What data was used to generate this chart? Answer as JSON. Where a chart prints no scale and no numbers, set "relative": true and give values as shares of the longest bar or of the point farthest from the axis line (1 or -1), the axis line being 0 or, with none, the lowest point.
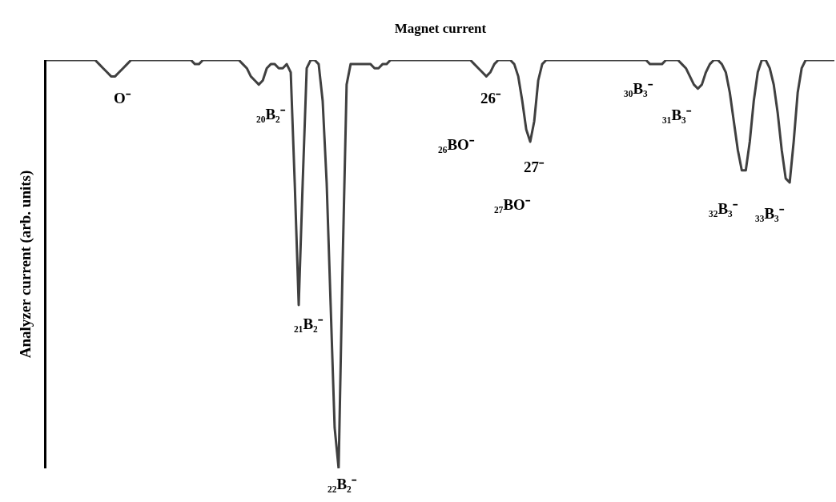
{
  "chart_data": {
    "type": "line",
    "relative": true,
    "xlabel": "Magnet current",
    "ylabel": "Analyzer current (arb. units)",
    "marker": "none",
    "line_style": "solid",
    "categories": [
      null,
      null,
      null,
      null,
      null,
      null,
      null,
      null,
      null,
      null,
      null,
      null,
      null,
      null,
      null,
      null,
      null,
      null,
      null,
      null,
      null,
      null,
      null,
      null,
      null,
      null,
      null,
      null,
      null,
      null,
      null,
      null,
      null,
      null,
      null,
      null,
      null,
      null,
      null,
      null,
      null,
      null,
      null,
      null,
      null,
      null,
      null,
      null,
      null,
      null,
      null,
      null,
      null,
      null,
      null,
      null,
      null,
      null,
      null,
      null,
      null,
      null,
      null,
      null,
      null,
      null,
      null,
      null,
      null,
      null,
      null,
      null,
      null,
      null,
      null,
      null,
      null,
      null,
      null,
      null,
      null,
      null,
      null,
      null,
      null,
      null,
      null,
      null,
      null,
      null,
      null,
      null,
      null,
      null,
      null,
      null,
      null,
      null,
      null,
      null,
      null,
      null,
      null,
      null,
      null,
      null,
      null,
      null,
      null,
      null,
      null,
      null,
      null,
      null,
      null,
      null,
      null,
      null,
      null,
      null,
      null,
      null,
      null,
      null,
      null,
      null,
      null,
      null,
      null,
      null,
      null,
      null,
      null,
      null,
      null,
      null,
      null,
      null,
      null,
      null,
      null,
      null,
      null,
      null,
      null,
      null,
      null,
      null,
      null,
      null,
      null,
      null,
      null,
      null,
      null,
      null,
      null,
      null,
      null,
      null,
      null,
      null,
      null,
      null,
      null,
      null,
      null,
      null,
      null,
      null,
      null,
      null,
      null,
      null,
      null,
      null,
      null,
      null,
      null,
      null,
      null,
      null,
      null,
      null,
      null,
      null,
      null,
      null,
      null,
      null,
      null,
      null,
      null,
      null,
      null,
      null,
      null,
      null
    ],
    "series": [
      {
        "color": "#404040",
        "values": [
          1,
          1,
          1,
          1,
          1,
          1,
          1,
          1,
          1,
          1,
          1,
          1,
          1,
          0.99,
          0.98,
          0.97,
          0.96,
          0.96,
          0.97,
          0.98,
          0.99,
          1,
          1,
          1,
          1,
          1,
          1,
          1,
          1,
          1,
          1,
          1,
          1,
          1,
          1,
          1,
          1,
          0.99,
          0.99,
          1,
          1,
          1,
          1,
          1,
          1,
          1,
          1,
          1,
          1,
          0.99,
          0.98,
          0.96,
          0.95,
          0.94,
          0.95,
          0.98,
          0.99,
          0.99,
          0.98,
          0.98,
          0.99,
          0.97,
          0.7,
          0.4,
          0.7,
          0.98,
          1,
          1,
          0.99,
          0.9,
          0.7,
          0.4,
          0.1,
          0,
          0.5,
          0.94,
          0.99,
          0.99,
          0.99,
          0.99,
          0.99,
          0.99,
          0.98,
          0.98,
          0.99,
          0.99,
          1,
          1,
          1,
          1,
          1,
          1,
          1,
          1,
          1,
          1,
          1,
          1,
          1,
          1,
          1,
          1,
          1,
          1,
          1,
          1,
          1,
          0.99,
          0.98,
          0.97,
          0.96,
          0.97,
          0.99,
          1,
          1,
          1,
          1,
          0.99,
          0.96,
          0.9,
          0.83,
          0.8,
          0.85,
          0.95,
          0.99,
          1,
          1,
          1,
          1,
          1,
          1,
          1,
          1,
          1,
          1,
          1,
          1,
          1,
          1,
          1,
          1,
          1,
          1,
          1,
          1,
          1,
          1,
          1,
          1,
          1,
          1,
          0.99,
          0.99,
          0.99,
          0.99,
          1,
          1,
          1,
          1,
          0.99,
          0.98,
          0.96,
          0.94,
          0.93,
          0.94,
          0.97,
          0.99,
          1,
          1,
          0.99,
          0.97,
          0.92,
          0.85,
          0.78,
          0.73,
          0.73,
          0.8,
          0.9,
          0.97,
          1,
          1,
          0.98,
          0.94,
          0.87,
          0.78,
          0.71,
          0.7,
          0.8,
          0.92,
          0.98,
          1,
          1,
          1,
          1,
          1,
          1,
          1,
          1
        ]
      }
    ],
    "annotations": [
      "O⁻",
      "₂₀B₂⁻",
      "₂₁B₂⁻",
      "₂₂B₂⁻",
      "26⁻",
      "₂₆BO⁻",
      "27⁻",
      "₂₇BO⁻",
      "₃₀B₃⁻",
      "₃₁B₃⁻",
      "₃₂B₃⁻",
      "₃₃B₃⁻"
    ]
  }
}
